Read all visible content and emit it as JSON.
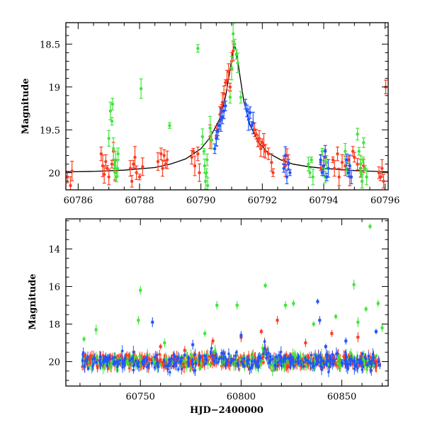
{
  "colors": {
    "red": "#ff3b1f",
    "green": "#3fe63a",
    "blue": "#1f55ff",
    "model": "#000000",
    "axis": "#000000"
  },
  "chart_data": [
    {
      "type": "scatter",
      "title": "",
      "xlabel": "",
      "ylabel": "Magnitude",
      "xlim": [
        60785.6,
        60796.1
      ],
      "ylim": [
        20.2,
        18.25
      ],
      "y_inverted": true,
      "x_major_ticks": [
        60786,
        60788,
        60790,
        60792,
        60794,
        60796
      ],
      "x_tick_labels": [
        "60786",
        "60788",
        "60790",
        "60792",
        "60794",
        "60796"
      ],
      "y_major_ticks": [
        18.5,
        19,
        19.5,
        20
      ],
      "y_tick_labels": [
        "18.5",
        "19",
        "19.5",
        "20"
      ],
      "model_curve": {
        "description": "single-lens microlensing fit",
        "x": [
          60785.6,
          60786.5,
          60787.5,
          60788.5,
          60789.0,
          60789.5,
          60790.0,
          60790.3,
          60790.6,
          60790.8,
          60790.95,
          60791.05,
          60791.1,
          60791.15,
          60791.25,
          60791.4,
          60791.6,
          60791.9,
          60792.2,
          60792.6,
          60793.0,
          60793.5,
          60794.0,
          60795.0,
          60796.1
        ],
        "y": [
          19.99,
          19.985,
          19.97,
          19.94,
          19.9,
          19.84,
          19.72,
          19.59,
          19.38,
          19.12,
          18.8,
          18.57,
          18.52,
          18.57,
          18.82,
          19.17,
          19.45,
          19.66,
          19.77,
          19.85,
          19.9,
          19.93,
          19.95,
          19.975,
          19.99
        ]
      },
      "series": [
        {
          "name": "",
          "color": "red",
          "points": [
            [
              60785.65,
              20.05
            ],
            [
              60785.75,
              20.15
            ],
            [
              60785.8,
              19.98
            ],
            [
              60786.75,
              19.78
            ],
            [
              60786.8,
              19.92
            ],
            [
              60786.85,
              20.02
            ],
            [
              60786.9,
              19.87
            ],
            [
              60786.95,
              19.95
            ],
            [
              60787.0,
              20.05
            ],
            [
              60787.1,
              19.9
            ],
            [
              60787.15,
              19.75
            ],
            [
              60787.2,
              19.98
            ],
            [
              60787.7,
              19.95
            ],
            [
              60787.75,
              20.1
            ],
            [
              60787.8,
              19.9
            ],
            [
              60787.85,
              19.82
            ],
            [
              60787.9,
              20.0
            ],
            [
              60788.0,
              20.05
            ],
            [
              60788.1,
              19.93
            ],
            [
              60788.6,
              19.87
            ],
            [
              60788.7,
              19.78
            ],
            [
              60788.75,
              19.95
            ],
            [
              60788.8,
              19.8
            ],
            [
              60788.85,
              19.9
            ],
            [
              60788.9,
              19.85
            ],
            [
              60789.7,
              19.82
            ],
            [
              60789.75,
              19.75
            ],
            [
              60789.8,
              19.92
            ],
            [
              60789.9,
              19.78
            ],
            [
              60789.95,
              20.0
            ],
            [
              60790.3,
              19.58
            ],
            [
              60790.35,
              19.62
            ],
            [
              60790.5,
              19.57
            ],
            [
              60790.55,
              19.5
            ],
            [
              60790.62,
              19.32
            ],
            [
              60790.67,
              19.25
            ],
            [
              60790.7,
              19.18
            ],
            [
              60790.75,
              19.08
            ],
            [
              60790.8,
              18.95
            ],
            [
              60790.85,
              18.92
            ],
            [
              60790.9,
              18.82
            ],
            [
              60790.95,
              19.0
            ],
            [
              60791.0,
              18.7
            ],
            [
              60791.05,
              18.58
            ],
            [
              60791.75,
              19.5
            ],
            [
              60791.8,
              19.55
            ],
            [
              60791.85,
              19.63
            ],
            [
              60791.9,
              19.6
            ],
            [
              60791.95,
              19.72
            ],
            [
              60792.0,
              19.65
            ],
            [
              60792.05,
              19.68
            ],
            [
              60792.1,
              19.75
            ],
            [
              60792.2,
              19.78
            ],
            [
              60792.3,
              19.88
            ],
            [
              60792.35,
              20.0
            ],
            [
              60792.7,
              19.85
            ],
            [
              60792.75,
              19.92
            ],
            [
              60792.8,
              19.8
            ],
            [
              60792.85,
              19.88
            ],
            [
              60793.9,
              19.88
            ],
            [
              60793.95,
              19.95
            ],
            [
              60794.05,
              19.82
            ],
            [
              60794.3,
              19.85
            ],
            [
              60794.35,
              19.95
            ],
            [
              60794.45,
              19.78
            ],
            [
              60794.5,
              20.05
            ],
            [
              60794.6,
              19.88
            ],
            [
              60794.7,
              19.92
            ],
            [
              60794.8,
              19.85
            ],
            [
              60794.85,
              20.05
            ],
            [
              60794.95,
              19.75
            ],
            [
              60795.0,
              19.82
            ],
            [
              60795.1,
              19.9
            ],
            [
              60795.2,
              19.95
            ],
            [
              60795.25,
              20.1
            ],
            [
              60795.3,
              19.92
            ],
            [
              60795.8,
              20.0
            ],
            [
              60795.85,
              20.05
            ],
            [
              60795.9,
              19.95
            ],
            [
              60795.95,
              20.1
            ],
            [
              60796.02,
              19.0
            ]
          ]
        },
        {
          "name": "",
          "color": "green",
          "points": [
            [
              60787.0,
              19.6
            ],
            [
              60787.05,
              19.28
            ],
            [
              60787.1,
              19.4
            ],
            [
              60787.12,
              19.2
            ],
            [
              60787.15,
              19.72
            ],
            [
              60787.18,
              19.9
            ],
            [
              60787.2,
              20.0
            ],
            [
              60787.22,
              19.85
            ],
            [
              60787.25,
              20.05
            ],
            [
              60787.28,
              19.95
            ],
            [
              60787.3,
              19.78
            ],
            [
              60788.05,
              19.02
            ],
            [
              60788.98,
              19.45
            ],
            [
              60789.9,
              18.55
            ],
            [
              60790.05,
              19.58
            ],
            [
              60790.1,
              19.75
            ],
            [
              60790.12,
              19.92
            ],
            [
              60790.15,
              20.1
            ],
            [
              60790.18,
              20.0
            ],
            [
              60790.2,
              19.85
            ],
            [
              60790.22,
              20.15
            ],
            [
              60790.3,
              19.48
            ],
            [
              60790.35,
              19.62
            ],
            [
              60790.95,
              19.12
            ],
            [
              60791.0,
              18.78
            ],
            [
              60791.05,
              18.38
            ],
            [
              60791.1,
              18.5
            ],
            [
              60791.15,
              18.62
            ],
            [
              60791.2,
              18.72
            ],
            [
              60791.3,
              19.12
            ],
            [
              60793.5,
              19.9
            ],
            [
              60793.55,
              20.0
            ],
            [
              60793.6,
              19.85
            ],
            [
              60793.65,
              20.05
            ],
            [
              60793.95,
              19.75
            ],
            [
              60794.0,
              19.95
            ],
            [
              60794.05,
              20.05
            ],
            [
              60794.1,
              19.88
            ],
            [
              60794.7,
              19.75
            ],
            [
              60794.75,
              19.95
            ],
            [
              60795.1,
              19.55
            ],
            [
              60795.15,
              19.75
            ],
            [
              60795.2,
              19.9
            ],
            [
              60795.22,
              20.0
            ],
            [
              60795.25,
              20.1
            ],
            [
              60795.28,
              19.85
            ],
            [
              60795.3,
              19.65
            ],
            [
              60795.35,
              19.95
            ],
            [
              60795.4,
              20.05
            ]
          ]
        },
        {
          "name": "",
          "color": "blue",
          "points": [
            [
              60790.45,
              19.72
            ],
            [
              60790.5,
              19.6
            ],
            [
              60790.55,
              19.52
            ],
            [
              60790.6,
              19.45
            ],
            [
              60790.65,
              19.38
            ],
            [
              60790.7,
              19.35
            ],
            [
              60790.75,
              19.28
            ],
            [
              60790.8,
              19.22
            ],
            [
              60791.45,
              19.2
            ],
            [
              60791.5,
              19.28
            ],
            [
              60791.55,
              19.38
            ],
            [
              60791.6,
              19.3
            ],
            [
              60791.65,
              19.45
            ],
            [
              60791.7,
              19.42
            ],
            [
              60792.7,
              19.95
            ],
            [
              60792.75,
              19.8
            ],
            [
              60792.8,
              20.05
            ],
            [
              60792.85,
              19.9
            ],
            [
              60792.9,
              20.0
            ],
            [
              60793.9,
              19.85
            ],
            [
              60793.95,
              20.0
            ],
            [
              60794.0,
              19.92
            ],
            [
              60794.05,
              19.75
            ],
            [
              60794.1,
              20.05
            ],
            [
              60794.15,
              19.95
            ],
            [
              60794.75,
              19.85
            ],
            [
              60794.8,
              20.0
            ],
            [
              60794.85,
              19.92
            ],
            [
              60794.9,
              20.05
            ]
          ]
        }
      ]
    },
    {
      "type": "scatter",
      "title": "",
      "xlabel": "HJD−2400000",
      "ylabel": "Magnitude",
      "xlim": [
        60713,
        60873
      ],
      "ylim": [
        21.3,
        12.4
      ],
      "y_inverted": true,
      "x_major_ticks": [
        60750,
        60800,
        60850
      ],
      "x_tick_labels": [
        "60750",
        "60800",
        "60850"
      ],
      "y_major_ticks": [
        14,
        16,
        18,
        20
      ],
      "y_tick_labels": [
        "14",
        "16",
        "18",
        "20"
      ],
      "baseline": {
        "x_start": 60721,
        "x_end": 60869,
        "magnitude": 20.0
      },
      "outliers": [
        {
          "color": "green",
          "points": [
            [
              60722,
              18.8
            ],
            [
              60728,
              18.3
            ],
            [
              60749,
              17.8
            ],
            [
              60750,
              16.2
            ],
            [
              60762,
              19.0
            ],
            [
              60782,
              18.5
            ],
            [
              60788,
              17.0
            ],
            [
              60798,
              17.0
            ],
            [
              60812,
              15.95
            ],
            [
              60822,
              17.0
            ],
            [
              60826,
              16.9
            ],
            [
              60836,
              18.0
            ],
            [
              60847,
              17.6
            ],
            [
              60856,
              15.9
            ],
            [
              60858,
              17.9
            ],
            [
              60862,
              17.2
            ],
            [
              60864,
              12.8
            ],
            [
              60868,
              16.9
            ],
            [
              60870,
              18.2
            ]
          ]
        },
        {
          "color": "blue",
          "points": [
            [
              60756,
              17.9
            ],
            [
              60776,
              19.1
            ],
            [
              60800,
              18.6
            ],
            [
              60838,
              16.8
            ],
            [
              60839,
              17.8
            ],
            [
              60842,
              19.2
            ],
            [
              60852,
              18.9
            ],
            [
              60867,
              18.4
            ]
          ]
        },
        {
          "color": "red",
          "points": [
            [
              60760,
              19.2
            ],
            [
              60772,
              19.4
            ],
            [
              60786,
              18.9
            ],
            [
              60800,
              18.7
            ],
            [
              60810,
              18.4
            ],
            [
              60818,
              17.8
            ],
            [
              60832,
              19.0
            ],
            [
              60845,
              18.5
            ],
            [
              60858,
              18.7
            ]
          ]
        }
      ]
    }
  ]
}
